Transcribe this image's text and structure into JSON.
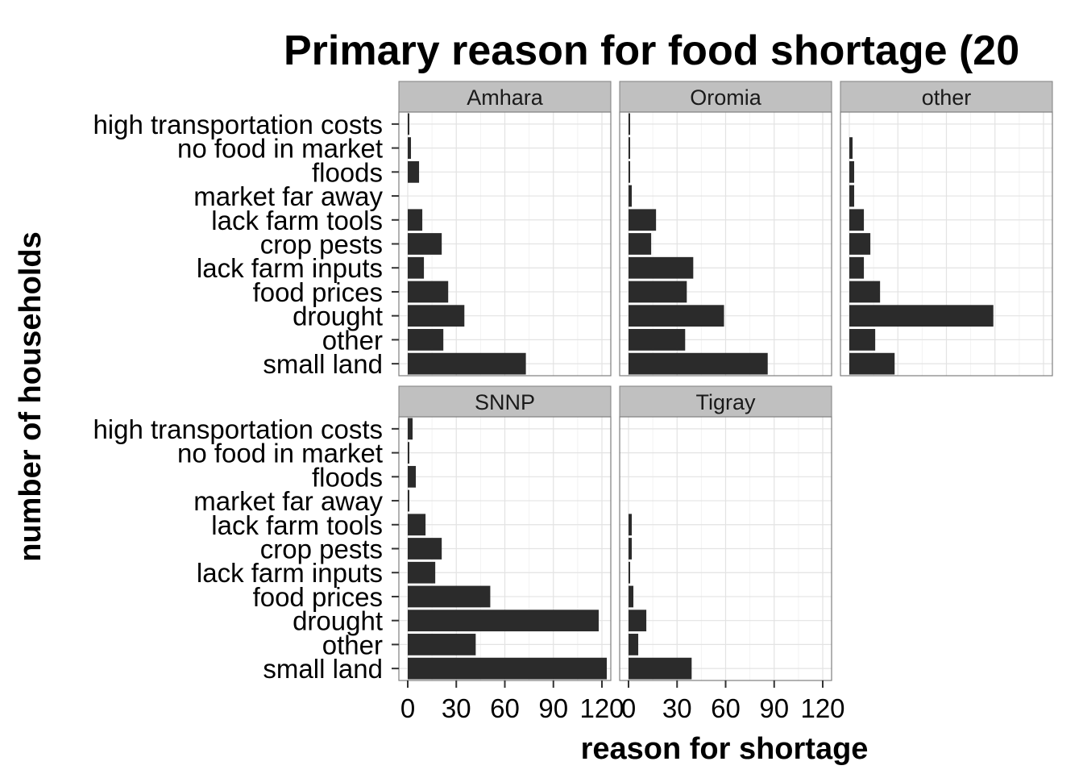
{
  "chart_data": {
    "type": "bar",
    "orientation": "horizontal",
    "title": "Primary reason for food shortage (20",
    "xlabel": "reason for shortage",
    "ylabel": "number of households",
    "xlim": [
      0,
      120
    ],
    "x_ticks": [
      "0",
      "30",
      "60",
      "90",
      "120"
    ],
    "grid": true,
    "categories": [
      "high transportation costs",
      "no food in market",
      "floods",
      "market far away",
      "lack farm tools",
      "crop pests",
      "lack farm inputs",
      "food prices",
      "drought",
      "other",
      "small land"
    ],
    "bar_color": "#2b2b2b",
    "strip_color": "#c0c0c0",
    "panels": [
      {
        "name": "Amhara",
        "values": [
          1,
          2,
          7,
          0,
          9,
          21,
          10,
          25,
          35,
          22,
          73
        ]
      },
      {
        "name": "Oromia",
        "values": [
          1,
          1,
          1,
          2,
          17,
          14,
          40,
          36,
          59,
          35,
          86
        ]
      },
      {
        "name": "other",
        "values": [
          0,
          2,
          3,
          3,
          9,
          13,
          9,
          19,
          89,
          16,
          28
        ]
      },
      {
        "name": "SNNP",
        "values": [
          3,
          1,
          5,
          1,
          11,
          21,
          17,
          51,
          118,
          42,
          123
        ]
      },
      {
        "name": "Tigray",
        "values": [
          0,
          0,
          0,
          0,
          2,
          2,
          1,
          3,
          11,
          6,
          39
        ]
      }
    ]
  }
}
